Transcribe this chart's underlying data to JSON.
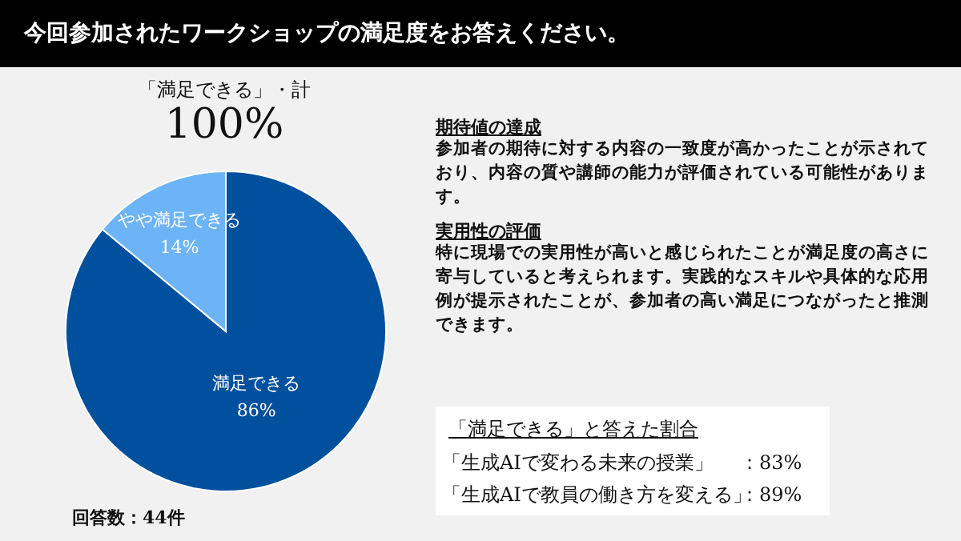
{
  "chart_data": {
    "type": "pie",
    "title": "今回参加されたワークショップの満足度をお答えください。",
    "categories": [
      "満足できる",
      "やや満足できる"
    ],
    "values": [
      86,
      14
    ],
    "colors": [
      "#00509e",
      "#6cb4f5"
    ],
    "value_labels": [
      "86%",
      "14%"
    ],
    "annotations": [
      "「満足できる」・計",
      "100%",
      "期待値の達成",
      "参加者の期待に対する内容の一致度が高かったことが示されており、内容の質や講師の能力が評価されている可能性があります。",
      "実用性の評価",
      "特に現場での実用性が高いと感じられたことが満足度の高さに寄与していると考えられます。実践的なスキルや具体的な応用例が提示されたことが、参加者の高い満足につながったと推測できます。",
      "「満足できる」と答えた割合",
      "「生成AIで変わる未来の授業」",
      "：83%",
      "「生成AIで教員の働き方を変える」",
      "：89%",
      "回答数：44件"
    ]
  }
}
